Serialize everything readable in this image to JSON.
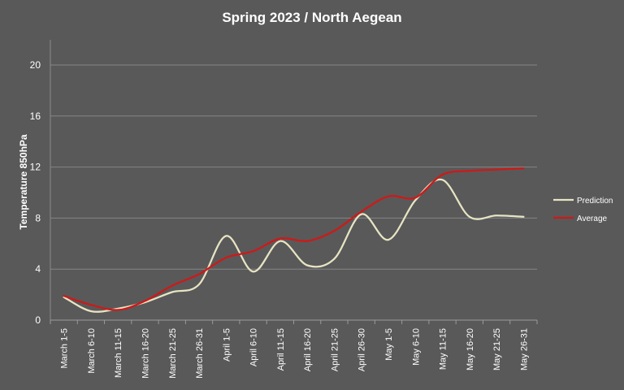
{
  "chart_data": {
    "type": "line",
    "title": "Spring 2023 / North Aegean",
    "ylabel": "Temperature 850hPa",
    "xlabel": "",
    "ylim": [
      0,
      20
    ],
    "yticks": [
      0,
      4,
      8,
      12,
      16,
      20
    ],
    "grid": true,
    "legend_position": "right",
    "categories": [
      "March 1-5",
      "March 6-10",
      "March 11-15",
      "March 16-20",
      "March 21-25",
      "March 26-31",
      "April 1-5",
      "April 6-10",
      "April 11-15",
      "April 16-20",
      "April 21-25",
      "April 26-30",
      "May 1-5",
      "May 6-10",
      "May 11-15",
      "May 16-20",
      "May 21-25",
      "May 26-31"
    ],
    "series": [
      {
        "name": "Prediction",
        "color": "#e8e4c4",
        "values": [
          1.8,
          0.7,
          0.9,
          1.4,
          2.2,
          2.8,
          6.6,
          3.8,
          6.2,
          4.3,
          4.8,
          8.3,
          6.3,
          9.4,
          11.0,
          8.1,
          8.2,
          8.1
        ]
      },
      {
        "name": "Average",
        "color": "#d01818",
        "values": [
          1.9,
          1.2,
          0.8,
          1.5,
          2.7,
          3.6,
          4.9,
          5.4,
          6.4,
          6.2,
          7.0,
          8.5,
          9.7,
          9.6,
          11.4,
          11.7,
          11.8,
          11.9
        ]
      }
    ]
  }
}
